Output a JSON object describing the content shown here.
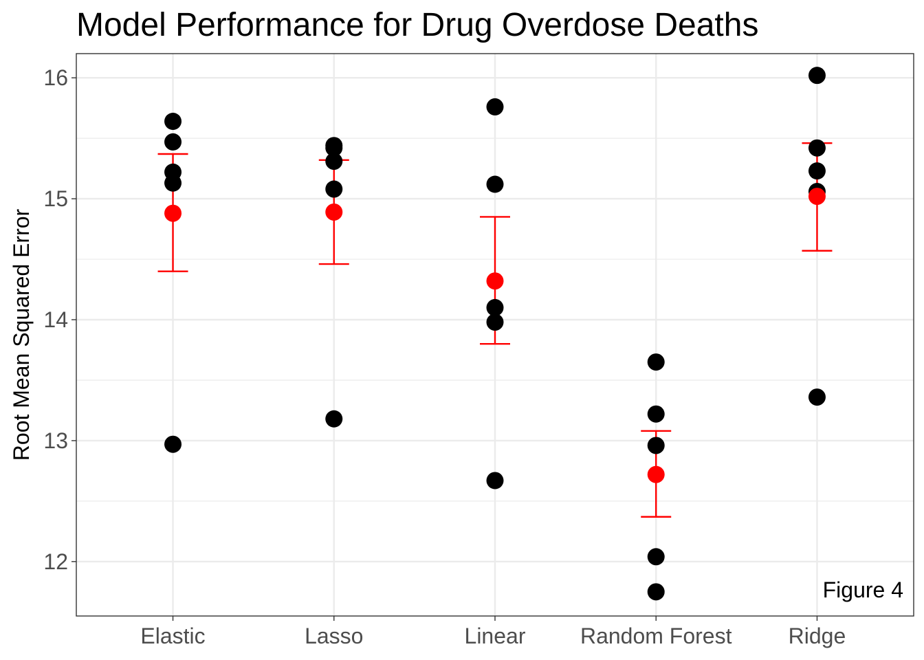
{
  "chart_data": {
    "type": "scatter",
    "title": "Model Performance for Drug Overdose Deaths",
    "xlabel": "",
    "ylabel": "Root Mean Squared Error",
    "categories": [
      "Elastic",
      "Lasso",
      "Linear",
      "Random Forest",
      "Ridge"
    ],
    "ylim": [
      11.55,
      16.2
    ],
    "y_ticks": [
      12,
      13,
      14,
      15,
      16
    ],
    "grid": true,
    "annotation": "Figure 4",
    "colors": {
      "points": "#000000",
      "summary": "#ff0000",
      "grid": "#ebebeb",
      "panel_border": "#333333"
    },
    "series": [
      {
        "values": [
          [
            15.64,
            15.47,
            15.22,
            15.13,
            12.97
          ],
          [
            15.44,
            15.42,
            15.31,
            15.08,
            13.18
          ],
          [
            15.76,
            15.12,
            14.1,
            13.98,
            12.67
          ],
          [
            13.65,
            13.22,
            12.96,
            12.04,
            11.75
          ],
          [
            16.02,
            15.42,
            15.23,
            15.06,
            13.36
          ]
        ]
      },
      {
        "values": [
          14.88,
          14.89,
          14.32,
          12.72,
          15.02
        ],
        "error_lower": [
          14.4,
          14.46,
          13.8,
          12.37,
          14.57
        ],
        "error_upper": [
          15.37,
          15.32,
          14.85,
          13.08,
          15.46
        ]
      }
    ]
  }
}
